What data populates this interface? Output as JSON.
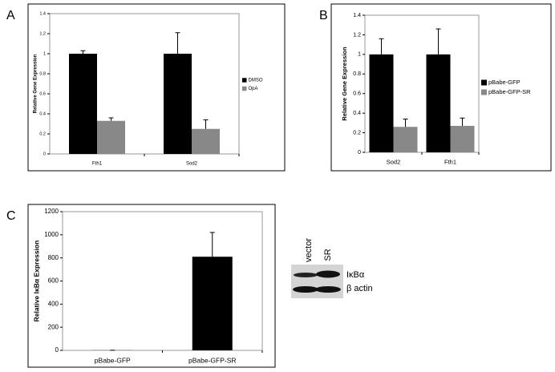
{
  "chart_data": [
    {
      "type": "bar",
      "panel": "A",
      "ylabel": "Relative Gene Expression",
      "categories": [
        "Fth1",
        "Sod2"
      ],
      "series": [
        {
          "name": "DMSO",
          "color": "#000000",
          "values": [
            1,
            1
          ],
          "errors": [
            0.03,
            0.21
          ]
        },
        {
          "name": "OpA",
          "color": "#888888",
          "values": [
            0.33,
            0.25
          ],
          "errors": [
            0.03,
            0.09
          ]
        }
      ],
      "ylim": [
        0,
        1.4
      ],
      "yticks": [
        0,
        0.2,
        0.4,
        0.6,
        0.8,
        1,
        1.2,
        1.4
      ]
    },
    {
      "type": "bar",
      "panel": "B",
      "ylabel": "Relative Gene Expression",
      "categories": [
        "Sod2",
        "Fth1"
      ],
      "series": [
        {
          "name": "pBabe-GFP",
          "color": "#000000",
          "values": [
            1,
            1
          ],
          "errors": [
            0.16,
            0.26
          ]
        },
        {
          "name": "pBabe-GFP-SR",
          "color": "#888888",
          "values": [
            0.26,
            0.27
          ],
          "errors": [
            0.08,
            0.08
          ]
        }
      ],
      "ylim": [
        0,
        1.4
      ],
      "yticks": [
        0,
        0.2,
        0.4,
        0.6,
        0.8,
        1,
        1.2,
        1.4
      ]
    },
    {
      "type": "bar",
      "panel": "C",
      "ylabel": "Relative IκBα Expression",
      "categories": [
        "pBabe-GFP",
        "pBabe-GFP-SR"
      ],
      "series": [
        {
          "color": "#000000",
          "values": [
            1,
            810
          ],
          "errors": [
            0,
            210
          ]
        }
      ],
      "ylim": [
        0,
        1200
      ],
      "yticks": [
        0,
        200,
        400,
        600,
        800,
        1000,
        1200
      ]
    }
  ],
  "blot": {
    "lanes": [
      "vector",
      "SR"
    ],
    "bands": [
      "IκBα",
      "β actin"
    ]
  }
}
